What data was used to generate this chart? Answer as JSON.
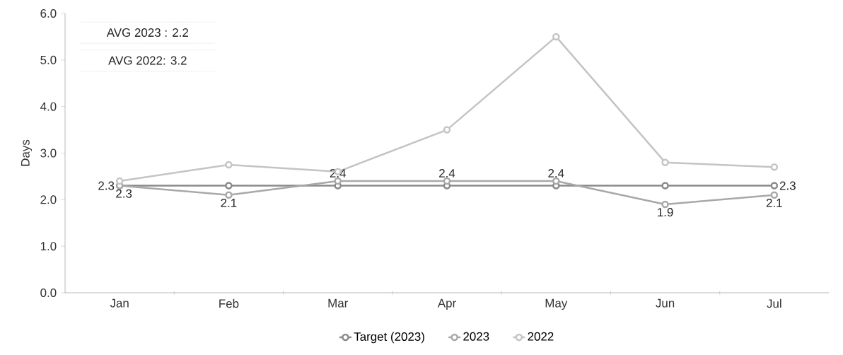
{
  "chart_data": {
    "type": "line",
    "ylabel": "Days",
    "categories": [
      "Jan",
      "Feb",
      "Mar",
      "Apr",
      "May",
      "Jun",
      "Jul"
    ],
    "series": [
      {
        "name": "Target (2023)",
        "color": "#8a8a8a",
        "values": [
          2.3,
          2.3,
          2.3,
          2.3,
          2.3,
          2.3,
          2.3
        ],
        "value_labels": [
          "2.3",
          null,
          null,
          null,
          null,
          null,
          "2.3"
        ]
      },
      {
        "name": "2023",
        "color": "#a8a8a8",
        "values": [
          2.3,
          2.1,
          2.4,
          2.4,
          2.4,
          1.9,
          2.1
        ],
        "value_labels": [
          "2.3",
          "2.1",
          "2.4",
          "2.4",
          "2.4",
          "1.9",
          "2.1"
        ]
      },
      {
        "name": "2022",
        "color": "#c4c4c4",
        "values": [
          2.4,
          2.75,
          2.6,
          3.5,
          5.5,
          2.8,
          2.7
        ]
      }
    ],
    "ylim": [
      0,
      6
    ],
    "yticks": [
      {
        "value": 0,
        "label": "0.0"
      },
      {
        "value": 1,
        "label": "1.0"
      },
      {
        "value": 2,
        "label": "2.0"
      },
      {
        "value": 3,
        "label": "3.0"
      },
      {
        "value": 4,
        "label": "4.0"
      },
      {
        "value": 5,
        "label": "5.0"
      },
      {
        "value": 6,
        "label": "6.0"
      }
    ],
    "annotations": [
      "AVG 2023 : 2.2",
      "AVG 2022: 3.2"
    ],
    "legend": "bottom",
    "grid": false,
    "marker": "circle",
    "line_style": "solid"
  }
}
